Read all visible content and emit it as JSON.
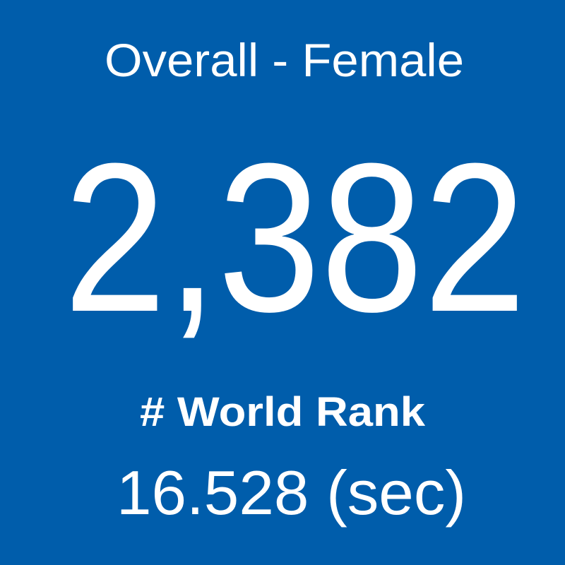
{
  "tile": {
    "title": "Overall - Female",
    "value": "2,382",
    "label": "# World Rank",
    "time": "16.528 (sec)"
  }
}
